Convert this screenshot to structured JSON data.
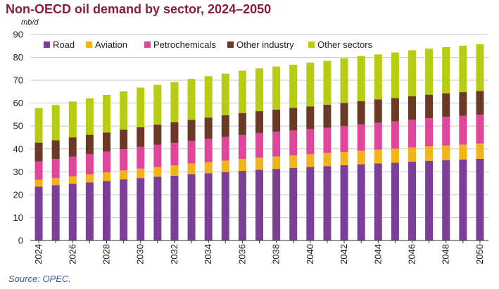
{
  "chart_data": {
    "type": "bar",
    "stacked": true,
    "title": "Non-OECD oil demand by sector, 2024–2050",
    "ylabel": "mb/d",
    "xlabel": "",
    "ylim": [
      0,
      90
    ],
    "yticks": [
      0,
      10,
      20,
      30,
      40,
      50,
      60,
      70,
      80,
      90
    ],
    "grid": true,
    "legend_position": "top",
    "source": "Source: OPEC.",
    "categories": [
      "2024",
      "2025",
      "2026",
      "2027",
      "2028",
      "2029",
      "2030",
      "2031",
      "2032",
      "2033",
      "2034",
      "2035",
      "2036",
      "2037",
      "2038",
      "2039",
      "2040",
      "2041",
      "2042",
      "2043",
      "2044",
      "2045",
      "2046",
      "2047",
      "2048",
      "2049",
      "2050"
    ],
    "tick_labels": [
      "2024",
      "",
      "2026",
      "",
      "2028",
      "",
      "2030",
      "",
      "2032",
      "",
      "2034",
      "",
      "2036",
      "",
      "2038",
      "",
      "2040",
      "",
      "2042",
      "",
      "2044",
      "",
      "2046",
      "",
      "2048",
      "",
      "2050"
    ],
    "series": [
      {
        "name": "Road",
        "color": "#7b3f98",
        "values": [
          23.5,
          24.2,
          24.8,
          25.4,
          26.0,
          26.7,
          27.3,
          27.8,
          28.3,
          28.9,
          29.4,
          29.9,
          30.4,
          30.9,
          31.3,
          31.7,
          32.1,
          32.5,
          32.9,
          33.3,
          33.7,
          34.0,
          34.4,
          34.8,
          35.1,
          35.4,
          35.7
        ]
      },
      {
        "name": "Aviation",
        "color": "#f2b31b",
        "values": [
          3.0,
          3.1,
          3.3,
          3.5,
          3.7,
          3.9,
          4.1,
          4.3,
          4.5,
          4.7,
          4.8,
          5.0,
          5.2,
          5.3,
          5.4,
          5.5,
          5.6,
          5.7,
          5.8,
          5.9,
          6.0,
          6.1,
          6.2,
          6.3,
          6.4,
          6.5,
          6.6
        ]
      },
      {
        "name": "Petrochemicals",
        "color": "#e0479a",
        "values": [
          8.0,
          8.3,
          8.6,
          8.9,
          9.1,
          9.3,
          9.5,
          9.7,
          9.9,
          10.0,
          10.2,
          10.4,
          10.5,
          10.7,
          10.8,
          10.9,
          11.0,
          11.1,
          11.3,
          11.5,
          11.7,
          11.9,
          12.1,
          12.3,
          12.5,
          12.6,
          12.7
        ]
      },
      {
        "name": "Other industry",
        "color": "#6b3a27",
        "values": [
          8.3,
          8.2,
          8.4,
          8.4,
          8.4,
          8.5,
          8.6,
          8.8,
          8.9,
          9.1,
          9.3,
          9.4,
          9.6,
          9.6,
          9.7,
          9.8,
          9.9,
          10.0,
          10.1,
          10.2,
          10.2,
          10.2,
          10.3,
          10.3,
          10.3,
          10.3,
          10.3
        ]
      },
      {
        "name": "Other sectors",
        "color": "#b7cc12",
        "values": [
          15.1,
          15.4,
          15.6,
          15.9,
          16.4,
          16.7,
          17.3,
          17.4,
          17.6,
          17.9,
          18.1,
          18.2,
          18.5,
          18.7,
          18.8,
          18.9,
          19.1,
          19.2,
          19.5,
          19.7,
          19.7,
          19.9,
          20.1,
          20.1,
          20.2,
          20.3,
          20.4
        ]
      }
    ]
  }
}
